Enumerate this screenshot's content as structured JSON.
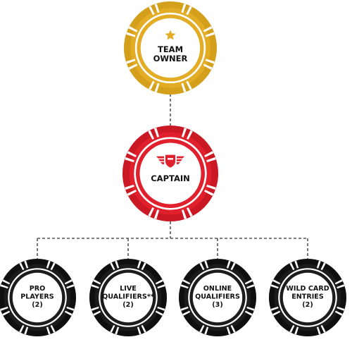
{
  "colors": {
    "gold": "#e2ad24",
    "gold_dark": "#c38f12",
    "red": "#e0202c",
    "red_dark": "#b0111b",
    "black": "#1c1c1c",
    "black_dark": "#000000",
    "connector": "#555555",
    "star": "#e2ad24",
    "shield": "#e0202c"
  },
  "chips": {
    "owner": {
      "lines": [
        "TEAM",
        "OWNER"
      ],
      "icon": "star-icon"
    },
    "captain": {
      "lines": [
        "CAPTAIN"
      ],
      "icon": "winged-shield-icon"
    },
    "pro": {
      "lines": [
        "PRO",
        "PLAYERS",
        "(2)"
      ]
    },
    "live": {
      "lines": [
        "LIVE",
        "QUALIFIERS**",
        "(2)"
      ]
    },
    "online": {
      "lines": [
        "ONLINE",
        "QUALIFIERS",
        "(3)"
      ]
    },
    "wildcard": {
      "lines": [
        "WILD CARD",
        "ENTRIES",
        "(2)"
      ]
    }
  }
}
